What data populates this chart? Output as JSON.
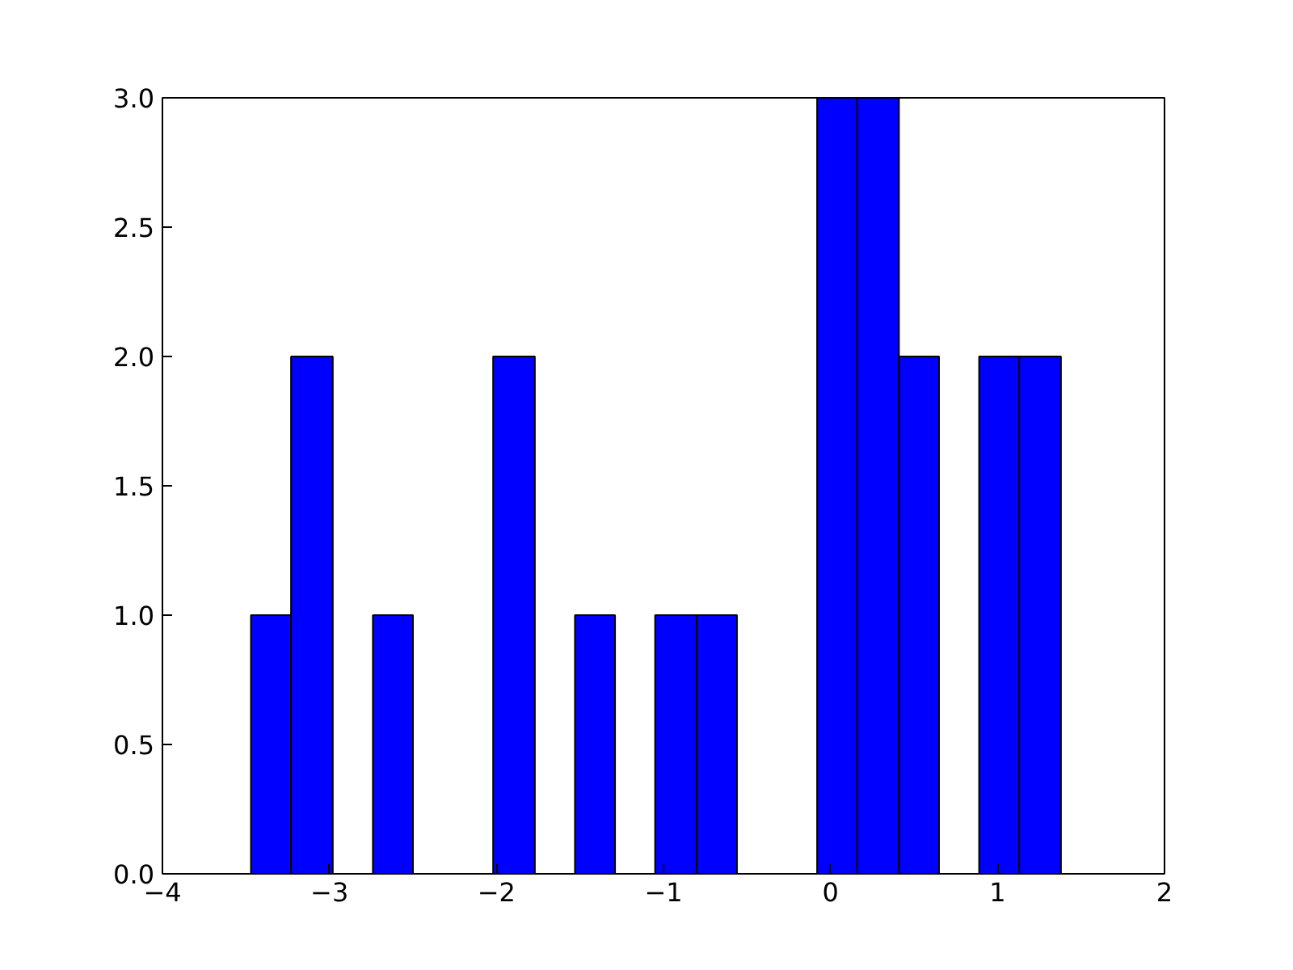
{
  "chart_data": {
    "type": "histogram",
    "bins": [
      -3.47,
      -3.23,
      -2.98,
      -2.74,
      -2.5,
      -2.26,
      -2.02,
      -1.77,
      -1.53,
      -1.29,
      -1.05,
      -0.8,
      -0.56,
      -0.32,
      -0.08,
      0.16,
      0.41,
      0.65,
      0.89,
      1.13,
      1.38
    ],
    "values": [
      1,
      2,
      0,
      1,
      0,
      0,
      2,
      0,
      1,
      0,
      1,
      1,
      0,
      0,
      3,
      3,
      2,
      0,
      2,
      2
    ],
    "color": "#0000ff",
    "xlim": [
      -4,
      2
    ],
    "xticks": [
      {
        "value": -4,
        "label": "−4"
      },
      {
        "value": -3,
        "label": "−3"
      },
      {
        "value": -2,
        "label": "−2"
      },
      {
        "value": -1,
        "label": "−1"
      },
      0,
      1,
      2
    ],
    "ylim": [
      0,
      3
    ],
    "yticks": [
      {
        "value": 0,
        "label": "0.0"
      },
      {
        "value": 0.5,
        "label": "0.5"
      },
      {
        "value": 1,
        "label": "1.0"
      },
      {
        "value": 1.5,
        "label": "1.5"
      },
      {
        "value": 2,
        "label": "2.0"
      },
      {
        "value": 2.5,
        "label": "2.5"
      },
      {
        "value": 3,
        "label": "3.0"
      }
    ],
    "grid": false
  }
}
